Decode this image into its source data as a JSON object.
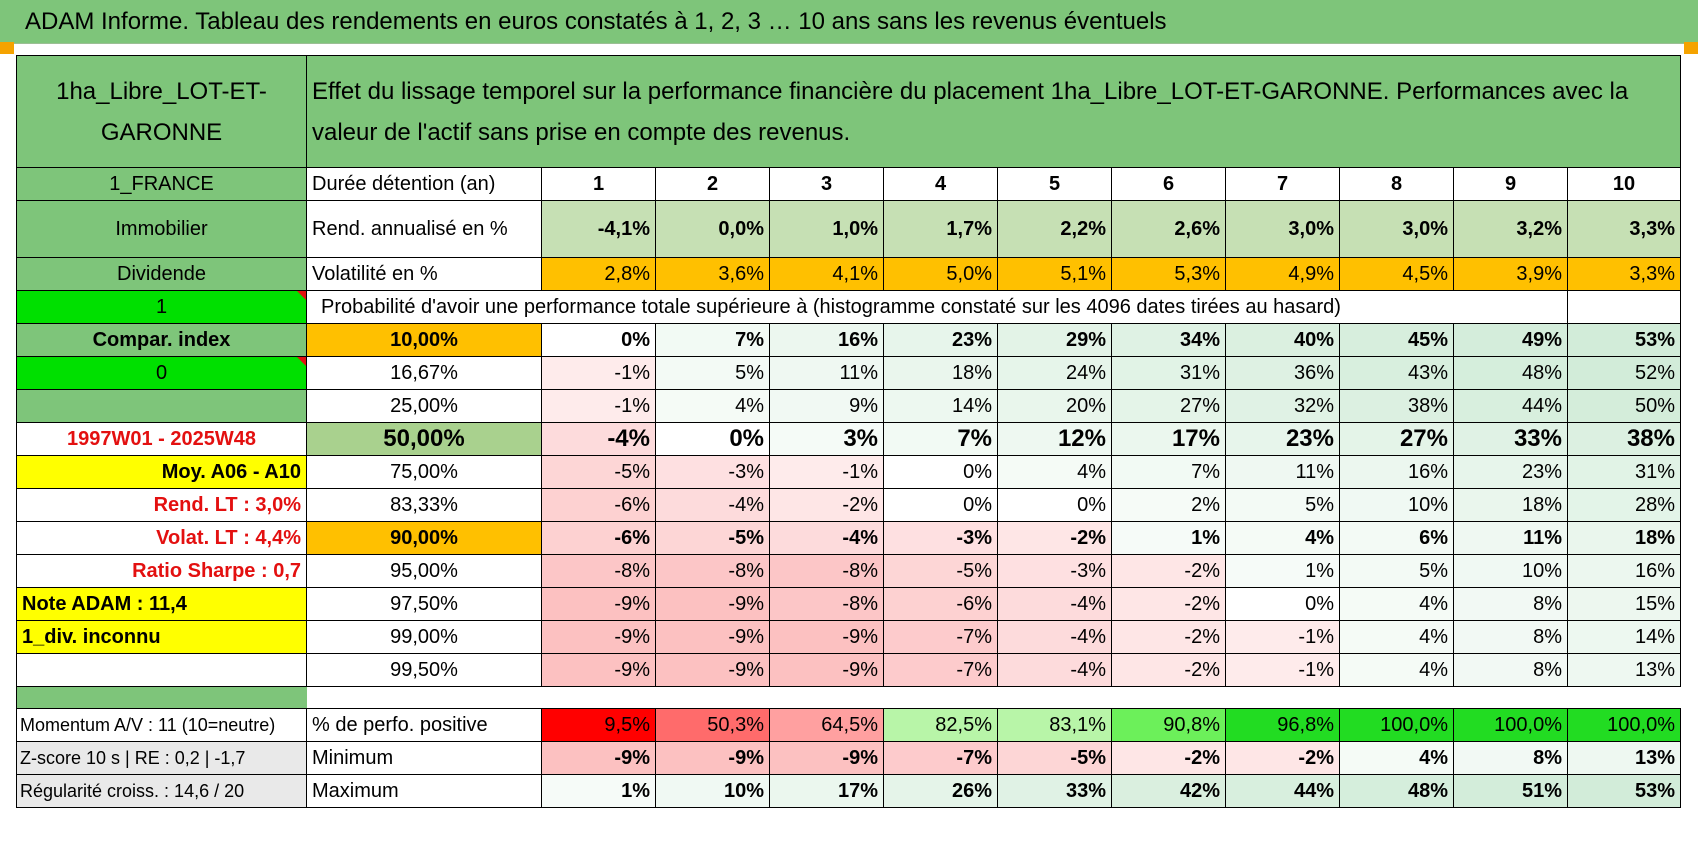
{
  "title": "ADAM Informe. Tableau des rendements en euros constatés à 1, 2, 3 … 10 ans sans les revenus éventuels",
  "colors": {
    "green": "#7ec57a",
    "bright_green": "#00e000",
    "yellow": "#ffff00",
    "orange": "#ffc000",
    "olive": "#a9d18e",
    "red_text": "#e31010"
  },
  "header": {
    "asset_name": "1ha_Libre_LOT-ET-GARONNE",
    "description": "Effet du lissage temporel sur la performance financière du placement 1ha_Libre_LOT-ET-GARONNE. Performances avec la valeur de l'actif sans prise en compte des revenus."
  },
  "sidebar": {
    "country": "1_FRANCE",
    "category": "Immobilier",
    "type": "Dividende",
    "flag1": "1",
    "compar": "Compar. index",
    "flag2": "0",
    "period": "1997W01 - 2025W48",
    "moy": "Moy. A06 - A10",
    "rend_lt": "Rend. LT :   3,0%",
    "volat_lt": "Volat. LT :   4,4%",
    "sharpe": "Ratio Sharpe :    0,7",
    "note": "Note ADAM : 11,4",
    "div": "1_div. inconnu",
    "momentum": "Momentum A/V : 11 (10=neutre)",
    "zscore": "Z-score 10 s | RE : 0,2 | -1,7",
    "regularite": "Régularité croiss. : 14,6 / 20"
  },
  "labels": {
    "duree": "Durée détention (an)",
    "rend": "Rend. annualisé en %",
    "vol": "Volatilité en %",
    "proba": "Probabilité d'avoir une performance totale supérieure à (histogramme constaté sur les 4096 dates tirées au hasard)",
    "pos": "% de perfo. positive",
    "min": "Minimum",
    "max": "Maximum"
  },
  "years": [
    "1",
    "2",
    "3",
    "4",
    "5",
    "6",
    "7",
    "8",
    "9",
    "10"
  ],
  "rend": [
    "-4,1%",
    "0,0%",
    "1,0%",
    "1,7%",
    "2,2%",
    "2,6%",
    "3,0%",
    "3,0%",
    "3,2%",
    "3,3%"
  ],
  "vol": [
    "2,8%",
    "3,6%",
    "4,1%",
    "5,0%",
    "5,1%",
    "5,3%",
    "4,9%",
    "4,5%",
    "3,9%",
    "3,3%"
  ],
  "proba_rows": [
    {
      "p": "10,00%",
      "v": [
        "0%",
        "7%",
        "16%",
        "23%",
        "29%",
        "34%",
        "40%",
        "45%",
        "49%",
        "53%"
      ]
    },
    {
      "p": "16,67%",
      "v": [
        "-1%",
        "5%",
        "11%",
        "18%",
        "24%",
        "31%",
        "36%",
        "43%",
        "48%",
        "52%"
      ]
    },
    {
      "p": "25,00%",
      "v": [
        "-1%",
        "4%",
        "9%",
        "14%",
        "20%",
        "27%",
        "32%",
        "38%",
        "44%",
        "50%"
      ]
    },
    {
      "p": "50,00%",
      "v": [
        "-4%",
        "0%",
        "3%",
        "7%",
        "12%",
        "17%",
        "23%",
        "27%",
        "33%",
        "38%"
      ]
    },
    {
      "p": "75,00%",
      "v": [
        "-5%",
        "-3%",
        "-1%",
        "0%",
        "4%",
        "7%",
        "11%",
        "16%",
        "23%",
        "31%"
      ]
    },
    {
      "p": "83,33%",
      "v": [
        "-6%",
        "-4%",
        "-2%",
        "0%",
        "0%",
        "2%",
        "5%",
        "10%",
        "18%",
        "28%"
      ]
    },
    {
      "p": "90,00%",
      "v": [
        "-6%",
        "-5%",
        "-4%",
        "-3%",
        "-2%",
        "1%",
        "4%",
        "6%",
        "11%",
        "18%"
      ]
    },
    {
      "p": "95,00%",
      "v": [
        "-8%",
        "-8%",
        "-8%",
        "-5%",
        "-3%",
        "-2%",
        "1%",
        "5%",
        "10%",
        "16%"
      ]
    },
    {
      "p": "97,50%",
      "v": [
        "-9%",
        "-9%",
        "-8%",
        "-6%",
        "-4%",
        "-2%",
        "0%",
        "4%",
        "8%",
        "15%"
      ]
    },
    {
      "p": "99,00%",
      "v": [
        "-9%",
        "-9%",
        "-9%",
        "-7%",
        "-4%",
        "-2%",
        "-1%",
        "4%",
        "8%",
        "14%"
      ]
    },
    {
      "p": "99,50%",
      "v": [
        "-9%",
        "-9%",
        "-9%",
        "-7%",
        "-4%",
        "-2%",
        "-1%",
        "4%",
        "8%",
        "13%"
      ]
    }
  ],
  "pos": [
    "9,5%",
    "50,3%",
    "64,5%",
    "82,5%",
    "83,1%",
    "90,8%",
    "96,8%",
    "100,0%",
    "100,0%",
    "100,0%"
  ],
  "min": [
    "-9%",
    "-9%",
    "-9%",
    "-7%",
    "-5%",
    "-2%",
    "-2%",
    "4%",
    "8%",
    "13%"
  ],
  "max": [
    "1%",
    "10%",
    "17%",
    "26%",
    "33%",
    "42%",
    "44%",
    "48%",
    "51%",
    "53%"
  ]
}
